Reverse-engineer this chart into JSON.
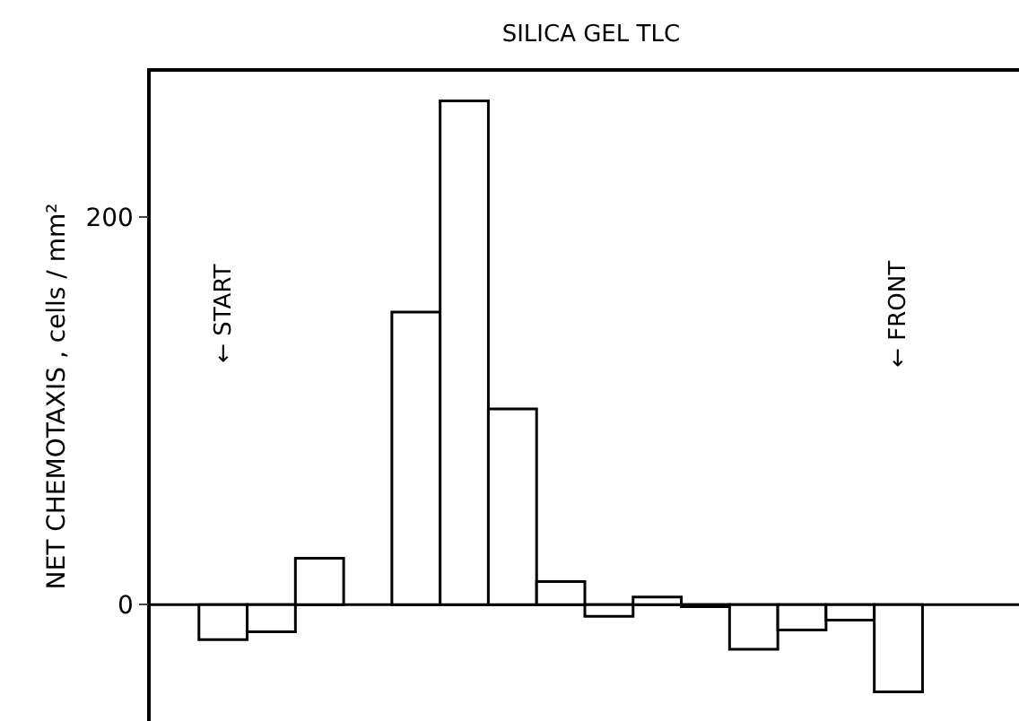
{
  "chart_data": {
    "type": "bar",
    "title": "SILICA GEL TLC",
    "ylabel": "NET CHEMOTAXIS , cells / mm²",
    "categories": [
      null,
      null,
      null,
      null,
      null,
      null,
      null,
      null,
      null,
      null,
      null,
      null,
      null,
      null,
      null,
      null,
      null,
      null
    ],
    "values": [
      null,
      -18,
      -14,
      24,
      null,
      151,
      260,
      101,
      12,
      -6,
      4,
      -1,
      -23,
      -13,
      -8,
      -45,
      null,
      null
    ],
    "color": "#ffffff",
    "ylim": [
      -60,
      275
    ],
    "yticks": [
      0,
      200
    ],
    "grid": false,
    "ref_lines": [
      {
        "axis": "y",
        "value": 0,
        "color": "#000000"
      }
    ],
    "tick_labels": "y",
    "annotations": [
      "← START",
      "← FRONT"
    ]
  }
}
